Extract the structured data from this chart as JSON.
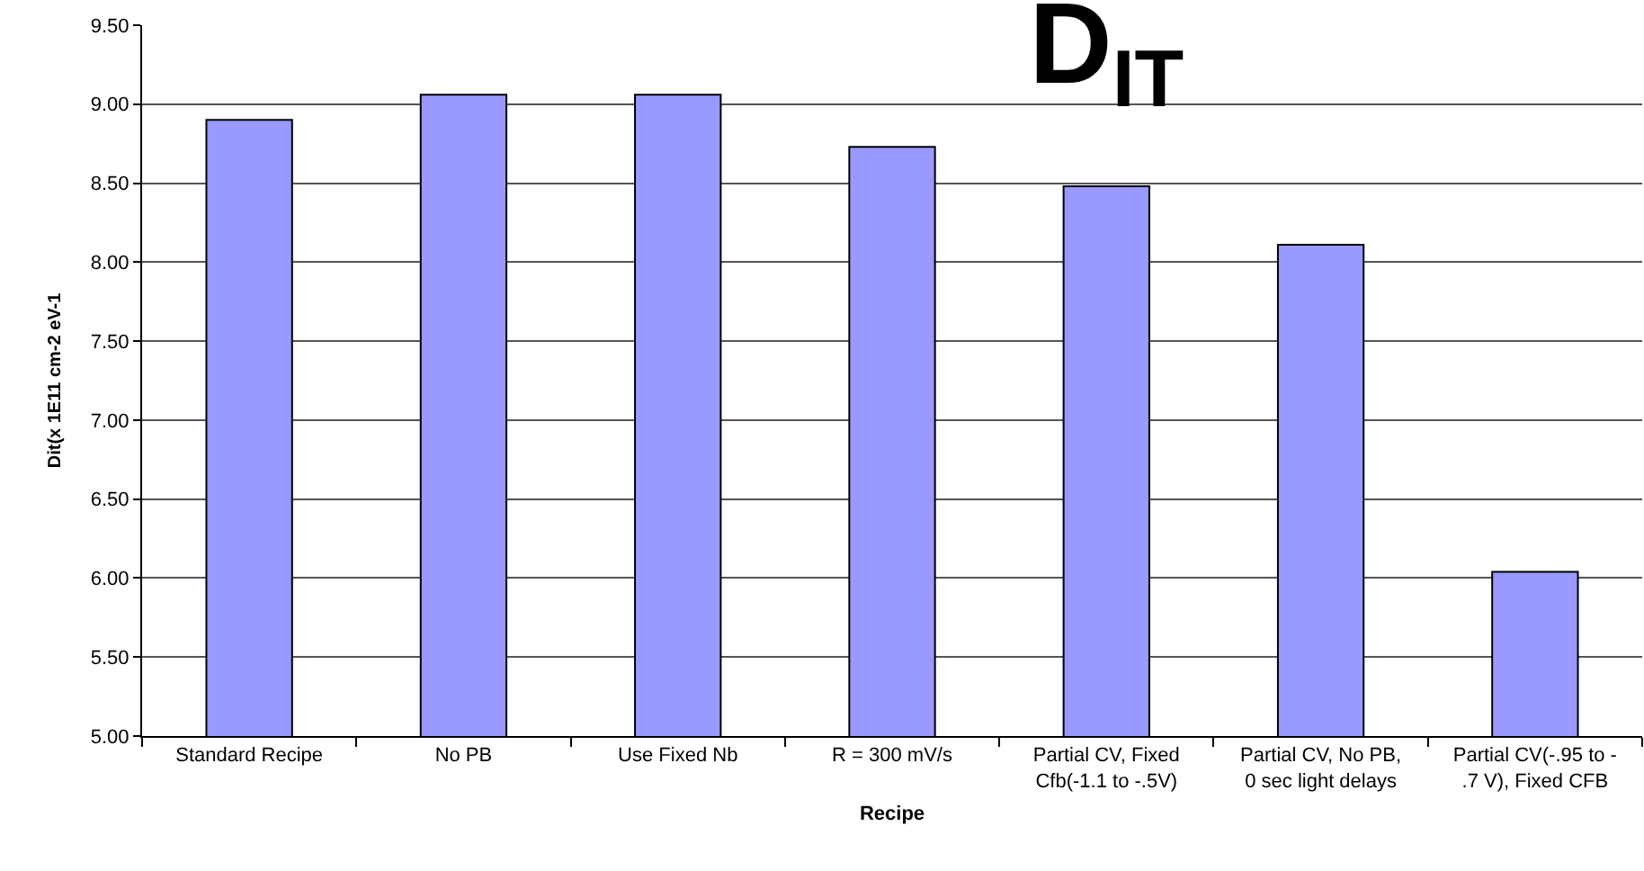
{
  "chart_data": {
    "type": "bar",
    "title": "D$_{IT}$",
    "xlabel": "Recipe",
    "ylabel": "Dit(x 1E11 cm-2 eV-1",
    "categories": [
      "Standard Recipe",
      "No PB",
      "Use Fixed Nb",
      "R = 300 mV/s",
      "Partial CV, Fixed\nCfb(-1.1 to -.5V)",
      "Partial CV, No PB,\n0 sec light delays",
      "Partial CV(-.95 to -\n.7 V), Fixed CFB"
    ],
    "values": [
      8.9,
      9.06,
      9.06,
      8.73,
      8.48,
      8.11,
      6.04
    ],
    "color": "#9999ff",
    "ylim": [
      5,
      9.5
    ],
    "yticks": [
      {
        "value": 5,
        "label": "5.00"
      },
      {
        "value": 5.5,
        "label": "5.50"
      },
      {
        "value": 6,
        "label": "6.00"
      },
      {
        "value": 6.5,
        "label": "6.50"
      },
      {
        "value": 7,
        "label": "7.00"
      },
      {
        "value": 7.5,
        "label": "7.50"
      },
      {
        "value": 8,
        "label": "8.00"
      },
      {
        "value": 8.5,
        "label": "8.50"
      },
      {
        "value": 9,
        "label": "9.00"
      },
      {
        "value": 9.5,
        "label": "9.50"
      }
    ],
    "grid": "y"
  }
}
